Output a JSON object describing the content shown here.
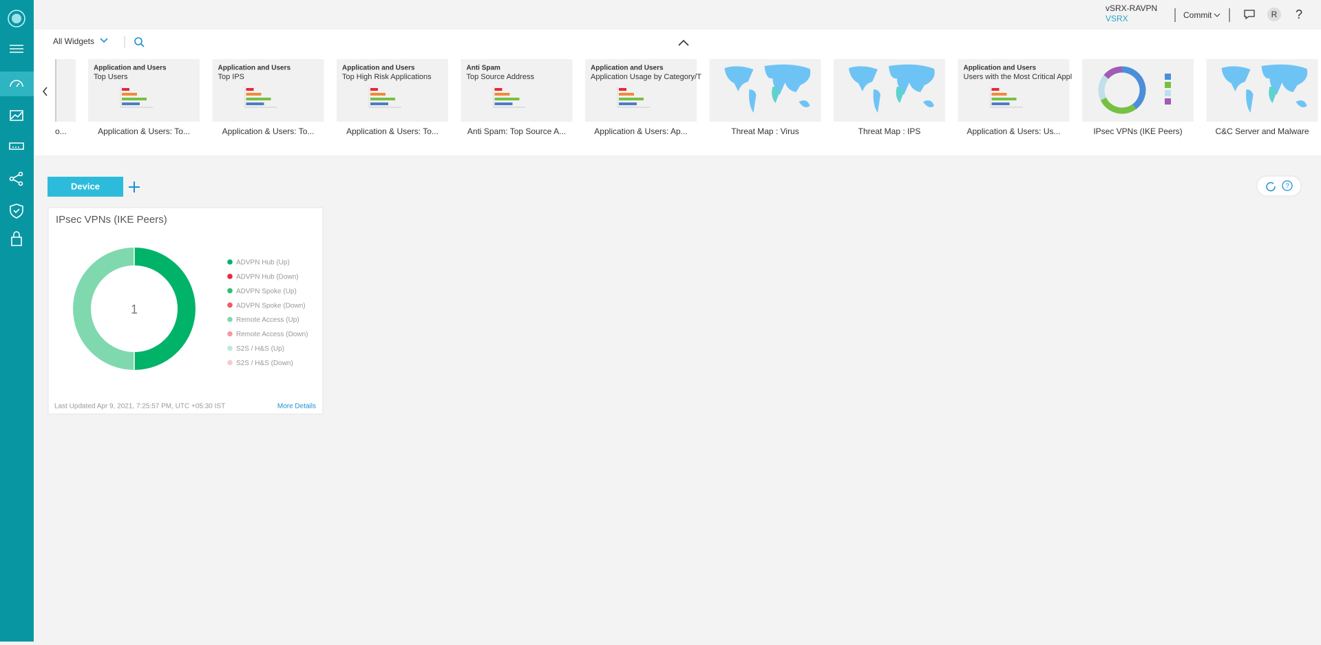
{
  "header": {
    "product": "vSRX-RAVPN",
    "model": "VSRX",
    "commit": "Commit",
    "avatar": "R",
    "help": "?"
  },
  "toolbar": {
    "filter": "All Widgets"
  },
  "carousel": {
    "partial_caption": "o...",
    "cards": [
      {
        "category": "Application and Users",
        "name": "Top Users",
        "caption": "Application & Users: To...",
        "thumb": "bars"
      },
      {
        "category": "Application and Users",
        "name": "Top IPS",
        "caption": "Application & Users: To...",
        "thumb": "bars"
      },
      {
        "category": "Application and Users",
        "name": "Top High Risk Applications",
        "caption": "Application & Users: To...",
        "thumb": "bars"
      },
      {
        "category": "Anti Spam",
        "name": "Top Source Address",
        "caption": "Anti Spam: Top Source A...",
        "thumb": "bars"
      },
      {
        "category": "Application and Users",
        "name": "Application Usage by Category/T",
        "caption": "Application & Users: Ap...",
        "thumb": "bars"
      },
      {
        "category": null,
        "name": null,
        "caption": "Threat Map : Virus",
        "thumb": "map"
      },
      {
        "category": null,
        "name": null,
        "caption": "Threat Map : IPS",
        "thumb": "map"
      },
      {
        "category": "Application and Users",
        "name": "Users with the Most Critical Appl",
        "caption": "Application & Users: Us...",
        "thumb": "bars"
      },
      {
        "category": null,
        "name": null,
        "caption": "IPsec VPNs (IKE Peers)",
        "thumb": "donut"
      },
      {
        "category": null,
        "name": null,
        "caption": "C&C Server and Malware",
        "thumb": "map"
      }
    ]
  },
  "dashboard": {
    "tab": "Device"
  },
  "widget": {
    "title": "IPsec VPNs (IKE Peers)",
    "center": "1",
    "legend": [
      {
        "label": "ADVPN Hub (Up)",
        "color": "#00b368"
      },
      {
        "label": "ADVPN Hub (Down)",
        "color": "#e9283e"
      },
      {
        "label": "ADVPN Spoke (Up)",
        "color": "#2fbf74"
      },
      {
        "label": "ADVPN Spoke (Down)",
        "color": "#ee5a66"
      },
      {
        "label": "Remote Access (Up)",
        "color": "#80d8ae"
      },
      {
        "label": "Remote Access (Down)",
        "color": "#f3999f"
      },
      {
        "label": "S2S / H&S (Up)",
        "color": "#bdebd4"
      },
      {
        "label": "S2S / H&S (Down)",
        "color": "#f8cbce"
      }
    ],
    "footer": "Last Updated Apr 9, 2021, 7:25:57 PM, UTC +05:30 IST",
    "link": "More Details"
  }
}
